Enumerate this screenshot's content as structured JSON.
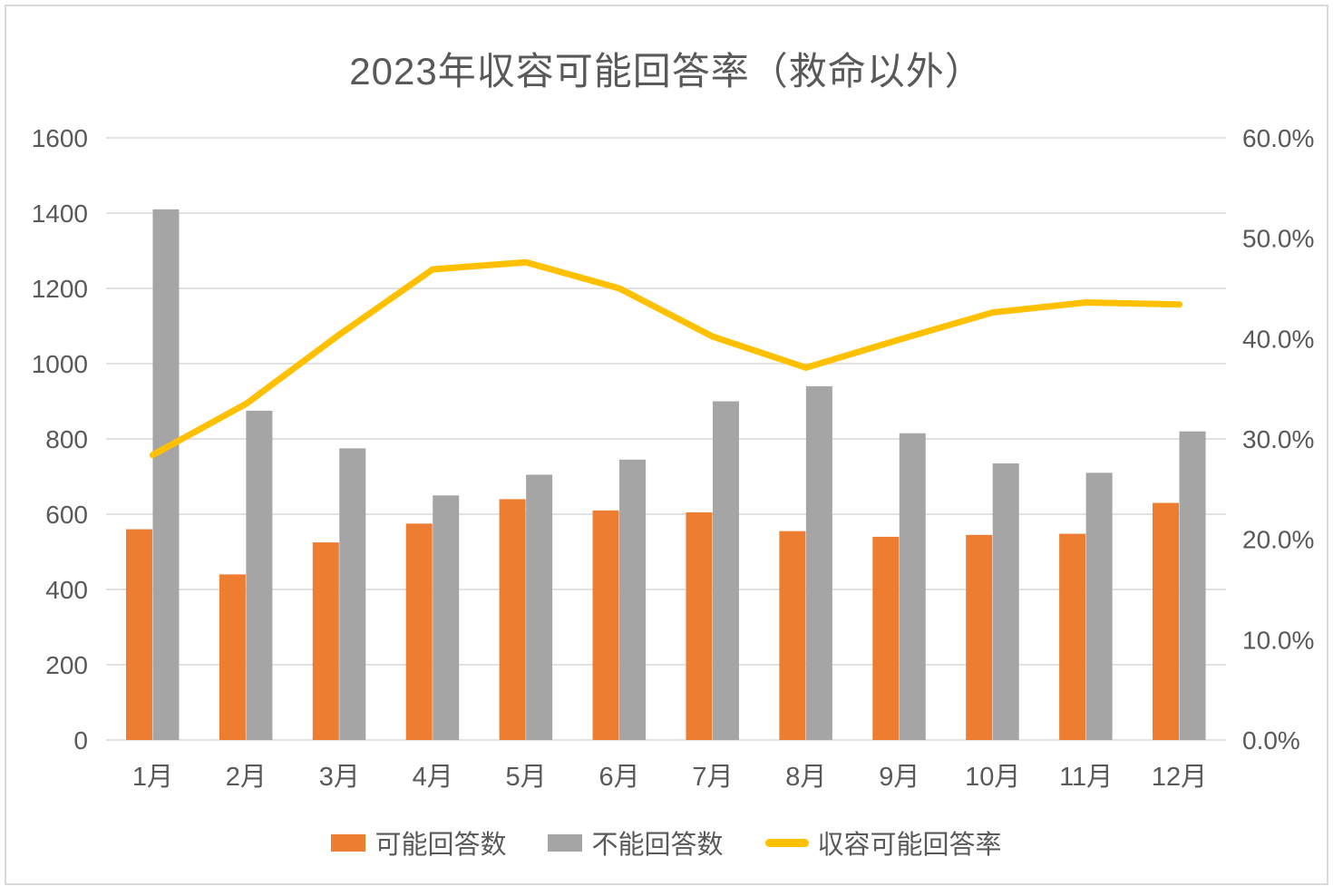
{
  "title": "2023年収容可能回答率（救命以外）",
  "colors": {
    "bar_possible": "#ED7D31",
    "bar_impossible": "#A5A5A5",
    "rate_line": "#FFC000",
    "gridline": "#D9D9D9",
    "axis_text": "#595959",
    "frame_border": "#D9D9D9"
  },
  "chart_data": {
    "type": "combo",
    "title": "2023年収容可能回答率（救命以外）",
    "categories": [
      "1月",
      "2月",
      "3月",
      "4月",
      "5月",
      "6月",
      "7月",
      "8月",
      "9月",
      "10月",
      "11月",
      "12月"
    ],
    "series": [
      {
        "name": "可能回答数",
        "type": "bar",
        "axis": "left",
        "color": "#ED7D31",
        "values": [
          560,
          440,
          525,
          575,
          640,
          610,
          605,
          555,
          540,
          545,
          548,
          630
        ]
      },
      {
        "name": "不能回答数",
        "type": "bar",
        "axis": "left",
        "color": "#A5A5A5",
        "values": [
          1410,
          875,
          775,
          650,
          705,
          745,
          900,
          940,
          815,
          735,
          710,
          820
        ]
      },
      {
        "name": "収容可能回答率",
        "type": "line",
        "axis": "right",
        "color": "#FFC000",
        "values_percent": [
          28.4,
          33.5,
          40.4,
          46.9,
          47.6,
          45.0,
          40.2,
          37.1,
          39.9,
          42.6,
          43.6,
          43.4
        ]
      }
    ],
    "left_axis": {
      "min": 0,
      "max": 1600,
      "step": 200,
      "tick_labels": [
        "0",
        "200",
        "400",
        "600",
        "800",
        "1000",
        "1200",
        "1400",
        "1600"
      ]
    },
    "right_axis": {
      "min": 0,
      "max": 60,
      "step": 10,
      "tick_labels": [
        "0.0%",
        "10.0%",
        "20.0%",
        "30.0%",
        "40.0%",
        "50.0%",
        "60.0%"
      ]
    },
    "grid": true,
    "legend_position": "bottom"
  }
}
